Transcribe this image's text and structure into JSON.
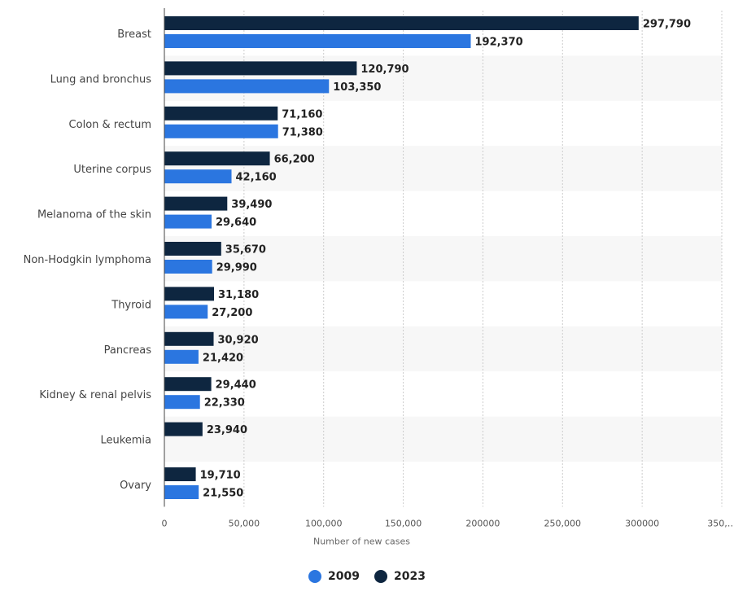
{
  "colors": {
    "series_2009": "#2b76e0",
    "series_2023": "#0e2640",
    "band": "#f7f7f7",
    "grid": "#cccccc"
  },
  "chart_data": {
    "type": "bar",
    "orientation": "horizontal",
    "title": "",
    "xlabel": "Number of new cases",
    "ylabel": "",
    "xlim": [
      0,
      350000
    ],
    "x_ticks": [
      "0",
      "50,000",
      "100,000",
      "150,000",
      "200000",
      "250,000",
      "300000",
      "350,…"
    ],
    "grid": "vertical dashed",
    "legend_position": "bottom",
    "categories": [
      "Breast",
      "Lung and bronchus",
      "Colon & rectum",
      "Uterine corpus",
      "Melanoma of the skin",
      "Non-Hodgkin lymphoma",
      "Thyroid",
      "Pancreas",
      "Kidney & renal pelvis",
      "Leukemia",
      "Ovary"
    ],
    "series": [
      {
        "name": "2023",
        "values": [
          297790,
          120790,
          71160,
          66200,
          39490,
          35670,
          31180,
          30920,
          29440,
          23940,
          19710
        ],
        "labels": [
          "297,790",
          "120,790",
          "71,160",
          "66,200",
          "39,490",
          "35,670",
          "31,180",
          "30,920",
          "29,440",
          "23,940",
          "19,710"
        ]
      },
      {
        "name": "2009",
        "values": [
          192370,
          103350,
          71380,
          42160,
          29640,
          29990,
          27200,
          21420,
          22330,
          null,
          21550
        ],
        "labels": [
          "192,370",
          "103,350",
          "71,380",
          "42,160",
          "29,640",
          "29,990",
          "27,200",
          "21,420",
          "22,330",
          "",
          "21,550"
        ]
      }
    ]
  },
  "legend": {
    "items": [
      {
        "label": "2009",
        "series": "2009"
      },
      {
        "label": "2023",
        "series": "2023"
      }
    ]
  }
}
